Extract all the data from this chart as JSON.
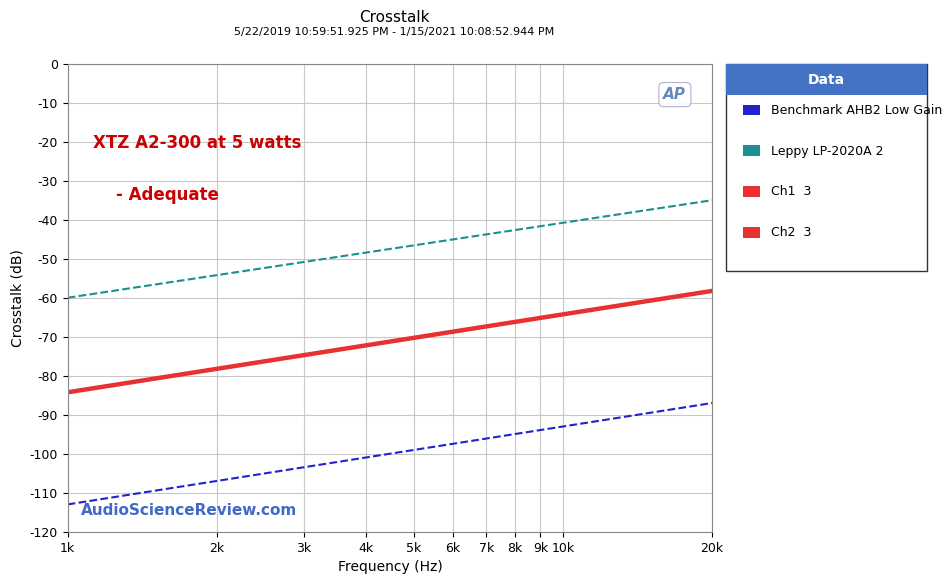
{
  "title": "Crosstalk",
  "subtitle": "5/22/2019 10:59:51.925 PM - 1/15/2021 10:08:52.944 PM",
  "xlabel": "Frequency (Hz)",
  "ylabel": "Crosstalk (dB)",
  "xlim": [
    1000,
    20000
  ],
  "ylim": [
    -120,
    0
  ],
  "yticks": [
    0,
    -10,
    -20,
    -30,
    -40,
    -50,
    -60,
    -70,
    -80,
    -90,
    -100,
    -110,
    -120
  ],
  "xtick_labels": [
    "1k",
    "2k",
    "3k",
    "4k",
    "5k",
    "6k",
    "7k",
    "8k",
    "9k",
    "10k",
    "20k"
  ],
  "xtick_values": [
    1000,
    2000,
    3000,
    4000,
    5000,
    6000,
    7000,
    8000,
    9000,
    10000,
    20000
  ],
  "annotation_line1": "XTZ A2-300 at 5 watts",
  "annotation_line2": "    - Adequate",
  "watermark": "AudioScienceReview.com",
  "ap_logo": "AP",
  "background_color": "#ffffff",
  "plot_bg_color": "#ffffff",
  "grid_color": "#c8c8c8",
  "series": [
    {
      "label": "Benchmark AHB2 Low Gain",
      "color": "#2222cc",
      "legend_color": "#2222cc",
      "linestyle": "dashed",
      "linewidth": 1.5,
      "x": [
        1000,
        20000
      ],
      "y": [
        -113,
        -87
      ]
    },
    {
      "label": "Leppy LP-2020A 2",
      "color": "#1a9090",
      "legend_color": "#1a9090",
      "linestyle": "dashed",
      "linewidth": 1.5,
      "x": [
        1000,
        20000
      ],
      "y": [
        -60,
        -35
      ]
    },
    {
      "label": "Ch1  3",
      "color": "#e83030",
      "legend_color": "#e83030",
      "linestyle": "solid",
      "linewidth": 1.8,
      "x": [
        1000,
        20000
      ],
      "y": [
        -84,
        -58
      ]
    },
    {
      "label": "Ch2  3",
      "color": "#e83030",
      "legend_color": "#e83030",
      "linestyle": "solid",
      "linewidth": 1.8,
      "x": [
        1000,
        20000
      ],
      "y": [
        -84.5,
        -58.5
      ]
    }
  ],
  "legend_title": "Data",
  "legend_title_color": "#ffffff",
  "legend_bg_color": "#ffffff",
  "legend_header_bg": "#4472c4",
  "title_color": "#000000",
  "subtitle_color": "#000000",
  "annotation_color": "#cc0000",
  "watermark_color": "#4169c8",
  "ylabel_fontsize": 10,
  "xlabel_fontsize": 10,
  "title_fontsize": 11
}
